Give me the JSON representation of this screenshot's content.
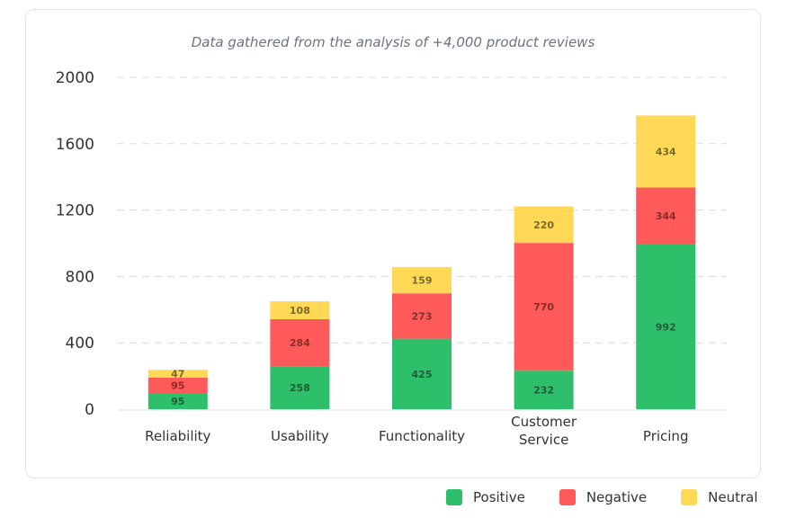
{
  "chart_data": {
    "type": "bar",
    "stacked": true,
    "title": "",
    "subtitle": "Data gathered from the analysis of +4,000 product reviews",
    "categories": [
      "Reliability",
      "Usability",
      "Functionality",
      "Customer Service",
      "Pricing"
    ],
    "series": [
      {
        "name": "Positive",
        "color": "#2ebf6b",
        "values": [
          95,
          258,
          425,
          232,
          992
        ]
      },
      {
        "name": "Negative",
        "color": "#ff5a5a",
        "values": [
          95,
          284,
          273,
          770,
          344
        ]
      },
      {
        "name": "Neutral",
        "color": "#ffd955",
        "values": [
          47,
          108,
          159,
          220,
          434
        ]
      }
    ],
    "ylim": [
      0,
      2000
    ],
    "yticks": [
      0,
      400,
      800,
      1200,
      1600,
      2000
    ],
    "grid": true,
    "legend": "bottom-right",
    "xlabel": "",
    "ylabel": ""
  }
}
